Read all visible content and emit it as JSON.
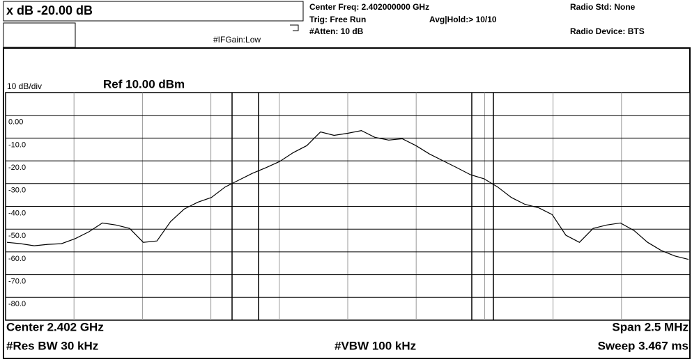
{
  "instrument": {
    "xdb": "x dB -20.00 dB",
    "if_gain": "#IFGain:Low",
    "center_freq": "Center Freq: 2.402000000 GHz",
    "trig": "Trig: Free Run",
    "avg_hold": "Avg|Hold:> 10/10",
    "atten": "#Atten: 10 dB",
    "radio_std": "Radio Std: None",
    "radio_device": "Radio Device: BTS"
  },
  "chart_data": {
    "type": "line",
    "scale_label": "10 dB/div",
    "ref_level": "Ref 10.00 dBm",
    "scale_type": "Log",
    "center": "Center  2.402 GHz",
    "span": "Span 2.5 MHz",
    "res_bw": "#Res BW  30 kHz",
    "vbw": "#VBW  100 kHz",
    "sweep": "Sweep  3.467 ms",
    "ylim": [
      -90,
      10
    ],
    "yticks": [
      {
        "value": 0,
        "label": "0.00"
      },
      {
        "value": -10,
        "label": "-10.0"
      },
      {
        "value": -20,
        "label": "-20.0"
      },
      {
        "value": -30,
        "label": "-30.0"
      },
      {
        "value": -40,
        "label": "-40.0"
      },
      {
        "value": -50,
        "label": "-50.0"
      },
      {
        "value": -60,
        "label": "-60.0"
      },
      {
        "value": -70,
        "label": "-70.0"
      },
      {
        "value": -80,
        "label": "-80.0"
      }
    ],
    "grid": true,
    "series": [
      {
        "color": "#000000",
        "values": [
          -55.8,
          -56.4,
          -57.3,
          -56.7,
          -56.4,
          -54.2,
          -51.2,
          -47.3,
          -48.2,
          -49.7,
          -55.8,
          -55.2,
          -46.7,
          -41.2,
          -38.2,
          -36.1,
          -31.5,
          -28.5,
          -25.5,
          -23.0,
          -20.3,
          -16.4,
          -13.3,
          -7.3,
          -8.8,
          -7.9,
          -6.7,
          -9.7,
          -10.9,
          -10.3,
          -13.3,
          -17.0,
          -20.0,
          -23.0,
          -26.1,
          -27.9,
          -31.5,
          -36.1,
          -39.1,
          -40.6,
          -43.6,
          -52.7,
          -55.8,
          -49.7,
          -48.2,
          -47.3,
          -50.6,
          -55.8,
          -59.4,
          -61.8,
          -63.3
        ]
      }
    ]
  }
}
